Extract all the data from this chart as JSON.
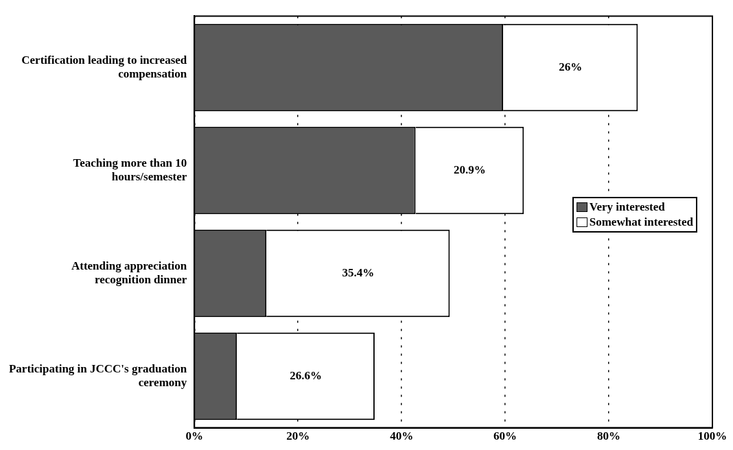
{
  "chart_data": {
    "type": "bar",
    "orientation": "horizontal",
    "stacked": true,
    "categories": [
      "Certification leading to increased compensation",
      "Teaching more than 10 hours/semester",
      "Attending appreciation recognition dinner",
      "Participating in JCCC's graduation ceremony"
    ],
    "series": [
      {
        "name": "Very interested",
        "color": "#5a5a5a",
        "values": [
          59.6,
          42.7,
          13.9,
          8.2
        ],
        "value_labels": [
          null,
          null,
          null,
          null
        ]
      },
      {
        "name": "Somewhat interested",
        "color": "#ffffff",
        "values": [
          26,
          20.9,
          35.4,
          26.6
        ],
        "value_labels": [
          "26%",
          "20.9%",
          "35.4%",
          "26.6%"
        ]
      }
    ],
    "xlim": [
      0,
      100
    ],
    "xticks": [
      {
        "value": 0,
        "label": "0%"
      },
      {
        "value": 20,
        "label": "20%"
      },
      {
        "value": 40,
        "label": "40%"
      },
      {
        "value": 60,
        "label": "60%"
      },
      {
        "value": 80,
        "label": "80%"
      },
      {
        "value": 100,
        "label": "100%"
      }
    ],
    "grid": "x",
    "legend": "right"
  }
}
